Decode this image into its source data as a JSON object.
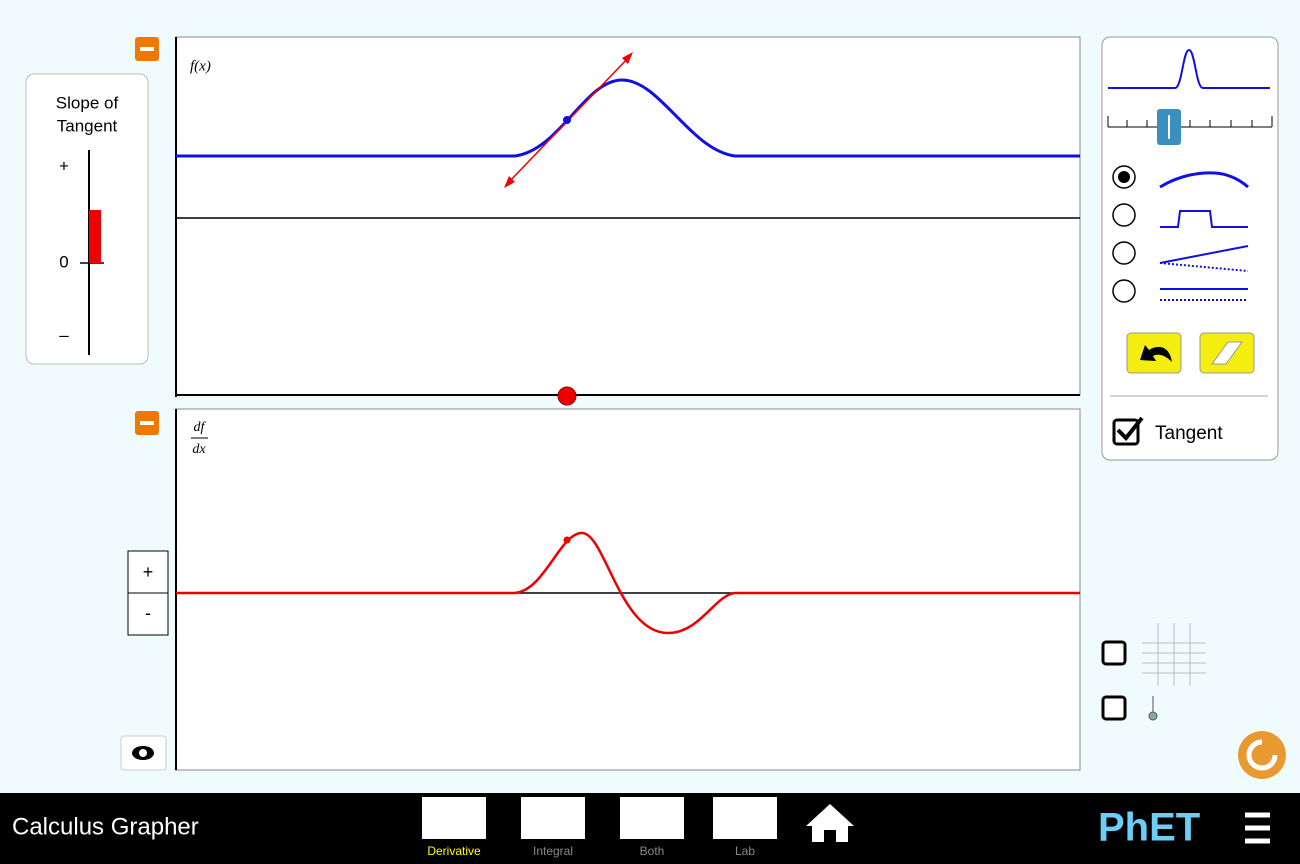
{
  "slope_meter": {
    "title_line1": "Slope of",
    "title_line2": "Tangent",
    "plus": "+",
    "zero": "0",
    "minus": "–"
  },
  "graphs": {
    "top_label": "f(x)",
    "bottom_label_num": "df",
    "bottom_label_den": "dx"
  },
  "zoom": {
    "in": "+",
    "out": "-"
  },
  "controls": {
    "tangent": "Tangent"
  },
  "navbar": {
    "title": "Calculus Grapher",
    "tabs": [
      "Derivative",
      "Integral",
      "Both",
      "Lab"
    ],
    "logo": "PhET"
  }
}
